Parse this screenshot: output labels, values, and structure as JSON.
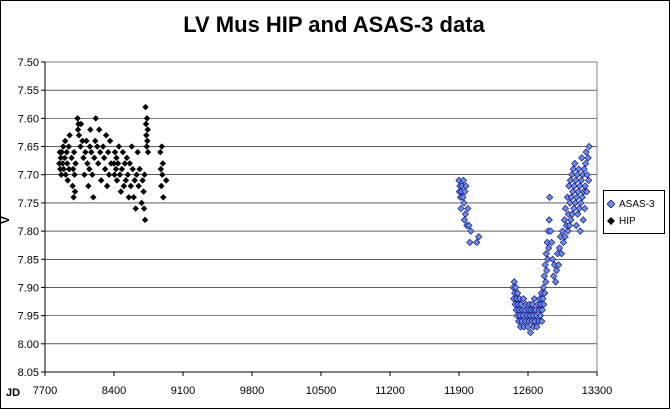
{
  "chart_data": {
    "type": "scatter",
    "title": "LV Mus HIP and ASAS-3 data",
    "xlabel": "JD",
    "ylabel": "V",
    "xlim": [
      7700,
      13300
    ],
    "ylim": [
      7.5,
      8.05
    ],
    "y_inverted": true,
    "x_ticks": [
      "7700",
      "8400",
      "9100",
      "9800",
      "10500",
      "11200",
      "11900",
      "12600",
      "13300"
    ],
    "y_ticks": [
      "7.50",
      "7.55",
      "7.60",
      "7.65",
      "7.70",
      "7.75",
      "7.80",
      "7.85",
      "7.90",
      "7.95",
      "8.00",
      "8.05"
    ],
    "grid": "horizontal",
    "plot_background": "#ffffff",
    "legend_position": "right",
    "series": [
      {
        "name": "HIP",
        "marker": "diamond",
        "color": "#000000",
        "points": [
          [
            7845,
            7.68
          ],
          [
            7850,
            7.66
          ],
          [
            7855,
            7.69
          ],
          [
            7860,
            7.67
          ],
          [
            7865,
            7.7
          ],
          [
            7870,
            7.66
          ],
          [
            7880,
            7.68
          ],
          [
            7885,
            7.65
          ],
          [
            7890,
            7.69
          ],
          [
            7900,
            7.67
          ],
          [
            7905,
            7.64
          ],
          [
            7910,
            7.7
          ],
          [
            7920,
            7.66
          ],
          [
            7925,
            7.68
          ],
          [
            7930,
            7.71
          ],
          [
            7940,
            7.65
          ],
          [
            7945,
            7.69
          ],
          [
            7950,
            7.63
          ],
          [
            7970,
            7.67
          ],
          [
            7980,
            7.72
          ],
          [
            7985,
            7.69
          ],
          [
            7990,
            7.74
          ],
          [
            7995,
            7.66
          ],
          [
            8000,
            7.7
          ],
          [
            8005,
            7.73
          ],
          [
            8010,
            7.68
          ],
          [
            8030,
            7.6
          ],
          [
            8035,
            7.62
          ],
          [
            8040,
            7.61
          ],
          [
            8045,
            7.63
          ],
          [
            8060,
            7.65
          ],
          [
            8065,
            7.61
          ],
          [
            8080,
            7.64
          ],
          [
            8090,
            7.67
          ],
          [
            8100,
            7.7
          ],
          [
            8110,
            7.66
          ],
          [
            8120,
            7.64
          ],
          [
            8130,
            7.68
          ],
          [
            8140,
            7.72
          ],
          [
            8150,
            7.69
          ],
          [
            8155,
            7.65
          ],
          [
            8160,
            7.62
          ],
          [
            8170,
            7.66
          ],
          [
            8180,
            7.7
          ],
          [
            8190,
            7.74
          ],
          [
            8200,
            7.67
          ],
          [
            8210,
            7.64
          ],
          [
            8215,
            7.6
          ],
          [
            8230,
            7.65
          ],
          [
            8240,
            7.68
          ],
          [
            8250,
            7.62
          ],
          [
            8260,
            7.66
          ],
          [
            8270,
            7.71
          ],
          [
            8290,
            7.65
          ],
          [
            8300,
            7.67
          ],
          [
            8310,
            7.69
          ],
          [
            8320,
            7.63
          ],
          [
            8330,
            7.72
          ],
          [
            8340,
            7.66
          ],
          [
            8350,
            7.7
          ],
          [
            8360,
            7.64
          ],
          [
            8370,
            7.68
          ],
          [
            8400,
            7.68
          ],
          [
            8405,
            7.7
          ],
          [
            8410,
            7.66
          ],
          [
            8420,
            7.69
          ],
          [
            8425,
            7.67
          ],
          [
            8430,
            7.71
          ],
          [
            8440,
            7.68
          ],
          [
            8450,
            7.65
          ],
          [
            8460,
            7.7
          ],
          [
            8470,
            7.73
          ],
          [
            8480,
            7.69
          ],
          [
            8490,
            7.66
          ],
          [
            8500,
            7.72
          ],
          [
            8510,
            7.68
          ],
          [
            8520,
            7.71
          ],
          [
            8530,
            7.67
          ],
          [
            8540,
            7.7
          ],
          [
            8550,
            7.74
          ],
          [
            8560,
            7.68
          ],
          [
            8570,
            7.72
          ],
          [
            8580,
            7.65
          ],
          [
            8590,
            7.69
          ],
          [
            8600,
            7.74
          ],
          [
            8610,
            7.71
          ],
          [
            8620,
            7.76
          ],
          [
            8630,
            7.7
          ],
          [
            8640,
            7.66
          ],
          [
            8650,
            7.72
          ],
          [
            8660,
            7.69
          ],
          [
            8680,
            7.75
          ],
          [
            8690,
            7.71
          ],
          [
            8700,
            7.73
          ],
          [
            8705,
            7.76
          ],
          [
            8710,
            7.7
          ],
          [
            8715,
            7.78
          ],
          [
            8720,
            7.58
          ],
          [
            8725,
            7.61
          ],
          [
            8728,
            7.63
          ],
          [
            8732,
            7.65
          ],
          [
            8735,
            7.6
          ],
          [
            8738,
            7.64
          ],
          [
            8742,
            7.62
          ],
          [
            8745,
            7.66
          ],
          [
            8870,
            7.66
          ],
          [
            8875,
            7.69
          ],
          [
            8880,
            7.72
          ],
          [
            8885,
            7.65
          ],
          [
            8890,
            7.7
          ],
          [
            8895,
            7.68
          ],
          [
            8900,
            7.74
          ],
          [
            8930,
            7.71
          ]
        ]
      },
      {
        "name": "ASAS-3",
        "marker": "diamond",
        "color": "#6b8ce0",
        "points": [
          [
            11900,
            7.71
          ],
          [
            11905,
            7.73
          ],
          [
            11910,
            7.72
          ],
          [
            11915,
            7.74
          ],
          [
            11920,
            7.76
          ],
          [
            11925,
            7.73
          ],
          [
            11930,
            7.72
          ],
          [
            11940,
            7.74
          ],
          [
            11945,
            7.71
          ],
          [
            11950,
            7.75
          ],
          [
            11955,
            7.78
          ],
          [
            11960,
            7.73
          ],
          [
            11965,
            7.77
          ],
          [
            11970,
            7.72
          ],
          [
            11980,
            7.79
          ],
          [
            11990,
            7.76
          ],
          [
            12000,
            7.79
          ],
          [
            12010,
            7.82
          ],
          [
            12020,
            7.8
          ],
          [
            12080,
            7.82
          ],
          [
            12100,
            7.81
          ],
          [
            12450,
            7.9
          ],
          [
            12455,
            7.92
          ],
          [
            12460,
            7.89
          ],
          [
            12465,
            7.91
          ],
          [
            12470,
            7.93
          ],
          [
            12475,
            7.9
          ],
          [
            12480,
            7.94
          ],
          [
            12485,
            7.92
          ],
          [
            12490,
            7.95
          ],
          [
            12495,
            7.91
          ],
          [
            12500,
            7.93
          ],
          [
            12505,
            7.96
          ],
          [
            12510,
            7.94
          ],
          [
            12515,
            7.92
          ],
          [
            12520,
            7.95
          ],
          [
            12525,
            7.97
          ],
          [
            12530,
            7.93
          ],
          [
            12535,
            7.96
          ],
          [
            12540,
            7.94
          ],
          [
            12550,
            7.95
          ],
          [
            12555,
            7.92
          ],
          [
            12560,
            7.97
          ],
          [
            12570,
            7.94
          ],
          [
            12575,
            7.96
          ],
          [
            12580,
            7.93
          ],
          [
            12590,
            7.95
          ],
          [
            12600,
            7.97
          ],
          [
            12605,
            7.94
          ],
          [
            12610,
            7.96
          ],
          [
            12615,
            7.93
          ],
          [
            12620,
            7.95
          ],
          [
            12625,
            7.98
          ],
          [
            12630,
            7.94
          ],
          [
            12640,
            7.96
          ],
          [
            12645,
            7.93
          ],
          [
            12650,
            7.95
          ],
          [
            12655,
            7.97
          ],
          [
            12660,
            7.94
          ],
          [
            12665,
            7.92
          ],
          [
            12670,
            7.96
          ],
          [
            12680,
            7.94
          ],
          [
            12685,
            7.95
          ],
          [
            12690,
            7.97
          ],
          [
            12700,
            7.93
          ],
          [
            12710,
            7.96
          ],
          [
            12715,
            7.94
          ],
          [
            12720,
            7.92
          ],
          [
            12725,
            7.95
          ],
          [
            12730,
            7.93
          ],
          [
            12735,
            7.91
          ],
          [
            12740,
            7.96
          ],
          [
            12745,
            7.94
          ],
          [
            12750,
            7.92
          ],
          [
            12755,
            7.9
          ],
          [
            12760,
            7.93
          ],
          [
            12765,
            7.88
          ],
          [
            12770,
            7.91
          ],
          [
            12775,
            7.86
          ],
          [
            12780,
            7.89
          ],
          [
            12785,
            7.84
          ],
          [
            12790,
            7.87
          ],
          [
            12795,
            7.82
          ],
          [
            12800,
            7.85
          ],
          [
            12805,
            7.8
          ],
          [
            12810,
            7.83
          ],
          [
            12815,
            7.78
          ],
          [
            12820,
            7.74
          ],
          [
            12830,
            7.8
          ],
          [
            12840,
            7.82
          ],
          [
            12850,
            7.85
          ],
          [
            12860,
            7.88
          ],
          [
            12870,
            7.86
          ],
          [
            12880,
            7.89
          ],
          [
            12890,
            7.87
          ],
          [
            12900,
            7.84
          ],
          [
            12910,
            7.86
          ],
          [
            12920,
            7.83
          ],
          [
            12930,
            7.81
          ],
          [
            12940,
            7.84
          ],
          [
            12950,
            7.8
          ],
          [
            12960,
            7.82
          ],
          [
            12970,
            7.78
          ],
          [
            12975,
            7.81
          ],
          [
            12980,
            7.76
          ],
          [
            12990,
            7.79
          ],
          [
            13000,
            7.74
          ],
          [
            13005,
            7.8
          ],
          [
            13010,
            7.77
          ],
          [
            13015,
            7.72
          ],
          [
            13020,
            7.79
          ],
          [
            13025,
            7.75
          ],
          [
            13030,
            7.71
          ],
          [
            13035,
            7.78
          ],
          [
            13040,
            7.74
          ],
          [
            13045,
            7.7
          ],
          [
            13050,
            7.77
          ],
          [
            13055,
            7.73
          ],
          [
            13060,
            7.69
          ],
          [
            13065,
            7.76
          ],
          [
            13070,
            7.72
          ],
          [
            13075,
            7.68
          ],
          [
            13080,
            7.75
          ],
          [
            13085,
            7.71
          ],
          [
            13090,
            7.79
          ],
          [
            13095,
            7.74
          ],
          [
            13100,
            7.7
          ],
          [
            13105,
            7.77
          ],
          [
            13110,
            7.73
          ],
          [
            13115,
            7.69
          ],
          [
            13120,
            7.76
          ],
          [
            13125,
            7.72
          ],
          [
            13130,
            7.8
          ],
          [
            13135,
            7.75
          ],
          [
            13140,
            7.71
          ],
          [
            13145,
            7.67
          ],
          [
            13150,
            7.74
          ],
          [
            13155,
            7.7
          ],
          [
            13160,
            7.78
          ],
          [
            13165,
            7.73
          ],
          [
            13170,
            7.69
          ],
          [
            13175,
            7.76
          ],
          [
            13180,
            7.72
          ],
          [
            13185,
            7.68
          ],
          [
            13190,
            7.66
          ],
          [
            13195,
            7.73
          ],
          [
            13200,
            7.7
          ],
          [
            13210,
            7.67
          ],
          [
            13220,
            7.65
          ],
          [
            13215,
            7.71
          ]
        ]
      }
    ]
  }
}
